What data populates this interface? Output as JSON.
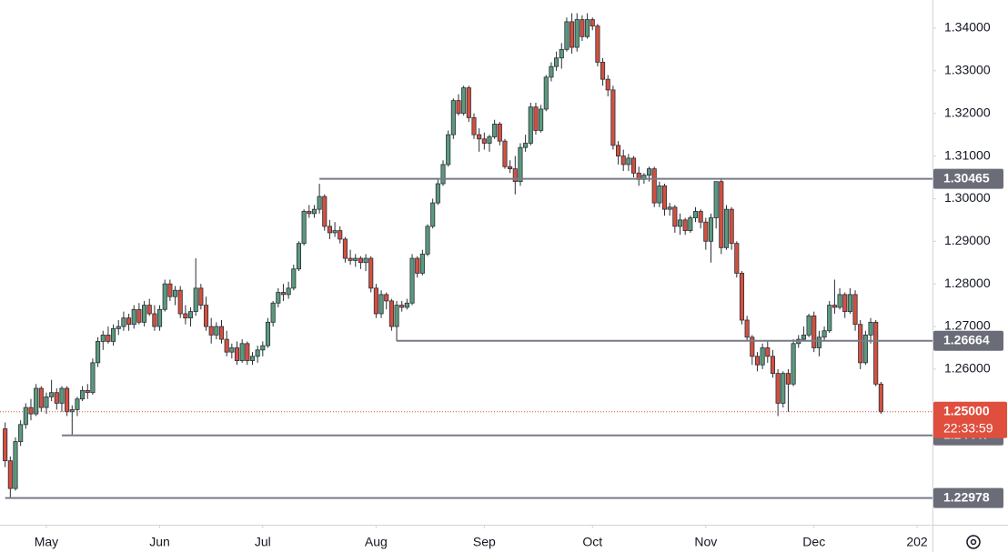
{
  "chart_data": {
    "type": "candlestick",
    "up_color": "#5b9a7c",
    "down_color": "#d4503e",
    "ylim": [
      1.2235,
      1.3466
    ],
    "xlim": [
      -1,
      180
    ],
    "yticks": [
      {
        "value": 1.26,
        "label": "1.26000"
      },
      {
        "value": 1.27,
        "label": "1.27000"
      },
      {
        "value": 1.28,
        "label": "1.28000"
      },
      {
        "value": 1.29,
        "label": "1.29000"
      },
      {
        "value": 1.3,
        "label": "1.30000"
      },
      {
        "value": 1.31,
        "label": "1.31000"
      },
      {
        "value": 1.32,
        "label": "1.32000"
      },
      {
        "value": 1.33,
        "label": "1.33000"
      },
      {
        "value": 1.34,
        "label": "1.34000"
      }
    ],
    "xticks": [
      {
        "value": 8,
        "label": "May"
      },
      {
        "value": 30,
        "label": "Jun"
      },
      {
        "value": 50,
        "label": "Jul"
      },
      {
        "value": 72,
        "label": "Aug"
      },
      {
        "value": 93,
        "label": "Sep"
      },
      {
        "value": 114,
        "label": "Oct"
      },
      {
        "value": 136,
        "label": "Nov"
      },
      {
        "value": 157,
        "label": "Dec"
      },
      {
        "value": 177,
        "label": "202"
      }
    ],
    "levels": [
      {
        "value": 1.30465,
        "x_start": 61
      },
      {
        "value": 1.26664,
        "x_start": 76
      },
      {
        "value": 1.24447,
        "x_start": 11
      },
      {
        "value": 1.22978,
        "x_start": 0
      }
    ],
    "last_price": {
      "value": 1.25,
      "label": "1.25000"
    },
    "countdown": "22:33:59",
    "candles": [
      [
        1.246,
        1.2475,
        1.237,
        1.2385
      ],
      [
        1.2385,
        1.2395,
        1.2298,
        1.232
      ],
      [
        1.232,
        1.244,
        1.2315,
        1.243
      ],
      [
        1.243,
        1.248,
        1.242,
        1.247
      ],
      [
        1.247,
        1.252,
        1.246,
        1.251
      ],
      [
        1.251,
        1.253,
        1.248,
        1.2495
      ],
      [
        1.2495,
        1.2565,
        1.249,
        1.2555
      ],
      [
        1.2555,
        1.256,
        1.25,
        1.251
      ],
      [
        1.251,
        1.2545,
        1.2495,
        1.2535
      ],
      [
        1.2535,
        1.2575,
        1.2525,
        1.2545
      ],
      [
        1.2545,
        1.2555,
        1.2505,
        1.252
      ],
      [
        1.252,
        1.256,
        1.25,
        1.2555
      ],
      [
        1.2555,
        1.256,
        1.249,
        1.25
      ],
      [
        1.25,
        1.2515,
        1.2445,
        1.2505
      ],
      [
        1.2505,
        1.2535,
        1.249,
        1.253
      ],
      [
        1.253,
        1.256,
        1.2525,
        1.255
      ],
      [
        1.255,
        1.2565,
        1.253,
        1.2545
      ],
      [
        1.2545,
        1.2625,
        1.254,
        1.2615
      ],
      [
        1.2615,
        1.2675,
        1.2605,
        1.2665
      ],
      [
        1.2665,
        1.269,
        1.2645,
        1.268
      ],
      [
        1.268,
        1.27,
        1.266,
        1.2665
      ],
      [
        1.2665,
        1.2705,
        1.2655,
        1.2695
      ],
      [
        1.2695,
        1.2715,
        1.268,
        1.27
      ],
      [
        1.27,
        1.2735,
        1.269,
        1.272
      ],
      [
        1.272,
        1.273,
        1.269,
        1.2705
      ],
      [
        1.2705,
        1.275,
        1.2695,
        1.274
      ],
      [
        1.274,
        1.2755,
        1.2705,
        1.271
      ],
      [
        1.271,
        1.276,
        1.27,
        1.275
      ],
      [
        1.275,
        1.2765,
        1.2725,
        1.273
      ],
      [
        1.273,
        1.275,
        1.269,
        1.27
      ],
      [
        1.27,
        1.275,
        1.269,
        1.274
      ],
      [
        1.274,
        1.281,
        1.2735,
        1.28
      ],
      [
        1.28,
        1.281,
        1.276,
        1.277
      ],
      [
        1.277,
        1.2795,
        1.275,
        1.2785
      ],
      [
        1.2785,
        1.2795,
        1.272,
        1.273
      ],
      [
        1.273,
        1.275,
        1.2705,
        1.272
      ],
      [
        1.272,
        1.2745,
        1.27,
        1.2735
      ],
      [
        1.2735,
        1.286,
        1.2725,
        1.279
      ],
      [
        1.279,
        1.28,
        1.274,
        1.275
      ],
      [
        1.275,
        1.277,
        1.269,
        1.27
      ],
      [
        1.27,
        1.272,
        1.266,
        1.268
      ],
      [
        1.268,
        1.271,
        1.267,
        1.27
      ],
      [
        1.27,
        1.2715,
        1.266,
        1.267
      ],
      [
        1.267,
        1.269,
        1.263,
        1.264
      ],
      [
        1.264,
        1.266,
        1.2625,
        1.265
      ],
      [
        1.265,
        1.2665,
        1.261,
        1.262
      ],
      [
        1.262,
        1.267,
        1.2615,
        1.266
      ],
      [
        1.266,
        1.2665,
        1.261,
        1.262
      ],
      [
        1.262,
        1.264,
        1.261,
        1.263
      ],
      [
        1.263,
        1.2655,
        1.2615,
        1.2645
      ],
      [
        1.2645,
        1.2665,
        1.263,
        1.2655
      ],
      [
        1.2655,
        1.272,
        1.265,
        1.271
      ],
      [
        1.271,
        1.276,
        1.27,
        1.2755
      ],
      [
        1.2755,
        1.279,
        1.2745,
        1.278
      ],
      [
        1.278,
        1.28,
        1.276,
        1.2775
      ],
      [
        1.2775,
        1.2805,
        1.2765,
        1.279
      ],
      [
        1.279,
        1.2845,
        1.2785,
        1.2835
      ],
      [
        1.2835,
        1.29,
        1.283,
        1.2895
      ],
      [
        1.2895,
        1.2975,
        1.289,
        1.297
      ],
      [
        1.297,
        1.2985,
        1.2955,
        1.2965
      ],
      [
        1.2965,
        1.2985,
        1.2955,
        1.2975
      ],
      [
        1.2975,
        1.3035,
        1.2965,
        1.3005
      ],
      [
        1.3005,
        1.301,
        1.2925,
        1.2935
      ],
      [
        1.2935,
        1.295,
        1.2905,
        1.292
      ],
      [
        1.292,
        1.2945,
        1.291,
        1.2925
      ],
      [
        1.2925,
        1.2935,
        1.2895,
        1.2905
      ],
      [
        1.2905,
        1.291,
        1.285,
        1.286
      ],
      [
        1.286,
        1.288,
        1.2845,
        1.2855
      ],
      [
        1.2855,
        1.287,
        1.284,
        1.286
      ],
      [
        1.286,
        1.2865,
        1.2835,
        1.285
      ],
      [
        1.285,
        1.287,
        1.283,
        1.286
      ],
      [
        1.286,
        1.2865,
        1.278,
        1.279
      ],
      [
        1.279,
        1.28,
        1.272,
        1.273
      ],
      [
        1.273,
        1.2785,
        1.272,
        1.2775
      ],
      [
        1.2775,
        1.278,
        1.274,
        1.276
      ],
      [
        1.276,
        1.2765,
        1.269,
        1.27
      ],
      [
        1.27,
        1.276,
        1.2666,
        1.275
      ],
      [
        1.275,
        1.276,
        1.2735,
        1.2745
      ],
      [
        1.2745,
        1.2765,
        1.274,
        1.2755
      ],
      [
        1.2755,
        1.287,
        1.275,
        1.286
      ],
      [
        1.286,
        1.2865,
        1.2815,
        1.2825
      ],
      [
        1.2825,
        1.288,
        1.282,
        1.287
      ],
      [
        1.287,
        1.294,
        1.2865,
        1.2935
      ],
      [
        1.2935,
        1.3,
        1.293,
        1.299
      ],
      [
        1.299,
        1.3045,
        1.2985,
        1.3035
      ],
      [
        1.3035,
        1.309,
        1.303,
        1.308
      ],
      [
        1.308,
        1.316,
        1.3075,
        1.315
      ],
      [
        1.315,
        1.3235,
        1.314,
        1.323
      ],
      [
        1.323,
        1.3245,
        1.3195,
        1.32
      ],
      [
        1.32,
        1.3265,
        1.3195,
        1.326
      ],
      [
        1.326,
        1.3265,
        1.318,
        1.319
      ],
      [
        1.319,
        1.32,
        1.314,
        1.315
      ],
      [
        1.315,
        1.3165,
        1.311,
        1.314
      ],
      [
        1.314,
        1.3155,
        1.3115,
        1.313
      ],
      [
        1.313,
        1.315,
        1.311,
        1.3145
      ],
      [
        1.3145,
        1.3185,
        1.314,
        1.3175
      ],
      [
        1.3175,
        1.318,
        1.3125,
        1.3135
      ],
      [
        1.3135,
        1.314,
        1.307,
        1.3075
      ],
      [
        1.3075,
        1.309,
        1.306,
        1.307
      ],
      [
        1.307,
        1.31,
        1.301,
        1.304
      ],
      [
        1.304,
        1.313,
        1.303,
        1.312
      ],
      [
        1.312,
        1.315,
        1.311,
        1.313
      ],
      [
        1.313,
        1.3225,
        1.3125,
        1.3215
      ],
      [
        1.3215,
        1.3225,
        1.315,
        1.316
      ],
      [
        1.316,
        1.322,
        1.3155,
        1.321
      ],
      [
        1.321,
        1.329,
        1.3205,
        1.3285
      ],
      [
        1.3285,
        1.332,
        1.3275,
        1.331
      ],
      [
        1.331,
        1.3345,
        1.33,
        1.333
      ],
      [
        1.333,
        1.3365,
        1.3305,
        1.335
      ],
      [
        1.335,
        1.3425,
        1.3345,
        1.3415
      ],
      [
        1.3415,
        1.3435,
        1.334,
        1.3355
      ],
      [
        1.3355,
        1.3435,
        1.3345,
        1.342
      ],
      [
        1.342,
        1.343,
        1.337,
        1.338
      ],
      [
        1.338,
        1.3435,
        1.3375,
        1.342
      ],
      [
        1.342,
        1.3425,
        1.3395,
        1.3405
      ],
      [
        1.3405,
        1.341,
        1.331,
        1.332
      ],
      [
        1.332,
        1.333,
        1.3265,
        1.328
      ],
      [
        1.328,
        1.329,
        1.324,
        1.3255
      ],
      [
        1.3255,
        1.3265,
        1.3115,
        1.3125
      ],
      [
        1.3125,
        1.3135,
        1.308,
        1.31
      ],
      [
        1.31,
        1.3115,
        1.3065,
        1.308
      ],
      [
        1.308,
        1.3105,
        1.3065,
        1.3095
      ],
      [
        1.3095,
        1.31,
        1.305,
        1.306
      ],
      [
        1.306,
        1.3075,
        1.303,
        1.3045
      ],
      [
        1.3045,
        1.306,
        1.3035,
        1.3055
      ],
      [
        1.3055,
        1.3075,
        1.304,
        1.307
      ],
      [
        1.307,
        1.3075,
        1.298,
        1.299
      ],
      [
        1.299,
        1.304,
        1.298,
        1.303
      ],
      [
        1.303,
        1.3035,
        1.296,
        1.2975
      ],
      [
        1.2975,
        1.299,
        1.296,
        1.298
      ],
      [
        1.298,
        1.2985,
        1.292,
        1.2935
      ],
      [
        1.2935,
        1.2965,
        1.2915,
        1.295
      ],
      [
        1.295,
        1.2955,
        1.2915,
        1.2925
      ],
      [
        1.2925,
        1.296,
        1.292,
        1.2955
      ],
      [
        1.2955,
        1.298,
        1.2945,
        1.297
      ],
      [
        1.297,
        1.2975,
        1.293,
        1.2945
      ],
      [
        1.2945,
        1.2955,
        1.288,
        1.29
      ],
      [
        1.29,
        1.2965,
        1.285,
        1.2955
      ],
      [
        1.2955,
        1.304,
        1.293,
        1.304
      ],
      [
        1.304,
        1.3045,
        1.287,
        1.2885
      ],
      [
        1.2885,
        1.2985,
        1.288,
        1.2975
      ],
      [
        1.2975,
        1.298,
        1.288,
        1.2895
      ],
      [
        1.2895,
        1.29,
        1.2815,
        1.2825
      ],
      [
        1.2825,
        1.283,
        1.2705,
        1.2715
      ],
      [
        1.2715,
        1.2725,
        1.2665,
        1.2675
      ],
      [
        1.2675,
        1.268,
        1.261,
        1.263
      ],
      [
        1.263,
        1.264,
        1.2595,
        1.261
      ],
      [
        1.261,
        1.266,
        1.26,
        1.265
      ],
      [
        1.265,
        1.2665,
        1.2615,
        1.263
      ],
      [
        1.263,
        1.2645,
        1.258,
        1.259
      ],
      [
        1.259,
        1.26,
        1.249,
        1.252
      ],
      [
        1.252,
        1.2595,
        1.251,
        1.259
      ],
      [
        1.259,
        1.26,
        1.25,
        1.2565
      ],
      [
        1.2565,
        1.267,
        1.256,
        1.266
      ],
      [
        1.266,
        1.268,
        1.265,
        1.267
      ],
      [
        1.267,
        1.27,
        1.2665,
        1.268
      ],
      [
        1.268,
        1.273,
        1.2675,
        1.2725
      ],
      [
        1.2725,
        1.2735,
        1.264,
        1.265
      ],
      [
        1.265,
        1.269,
        1.263,
        1.2675
      ],
      [
        1.2675,
        1.27,
        1.2665,
        1.269
      ],
      [
        1.269,
        1.276,
        1.2685,
        1.275
      ],
      [
        1.275,
        1.281,
        1.273,
        1.2745
      ],
      [
        1.2745,
        1.279,
        1.274,
        1.2775
      ],
      [
        1.2775,
        1.278,
        1.272,
        1.2735
      ],
      [
        1.2735,
        1.279,
        1.273,
        1.2775
      ],
      [
        1.2775,
        1.2785,
        1.269,
        1.2705
      ],
      [
        1.2705,
        1.2715,
        1.26,
        1.2615
      ],
      [
        1.2615,
        1.269,
        1.261,
        1.268
      ],
      [
        1.268,
        1.272,
        1.266,
        1.271
      ],
      [
        1.271,
        1.2715,
        1.256,
        1.2565
      ],
      [
        1.2565,
        1.257,
        1.2495,
        1.25
      ]
    ]
  }
}
